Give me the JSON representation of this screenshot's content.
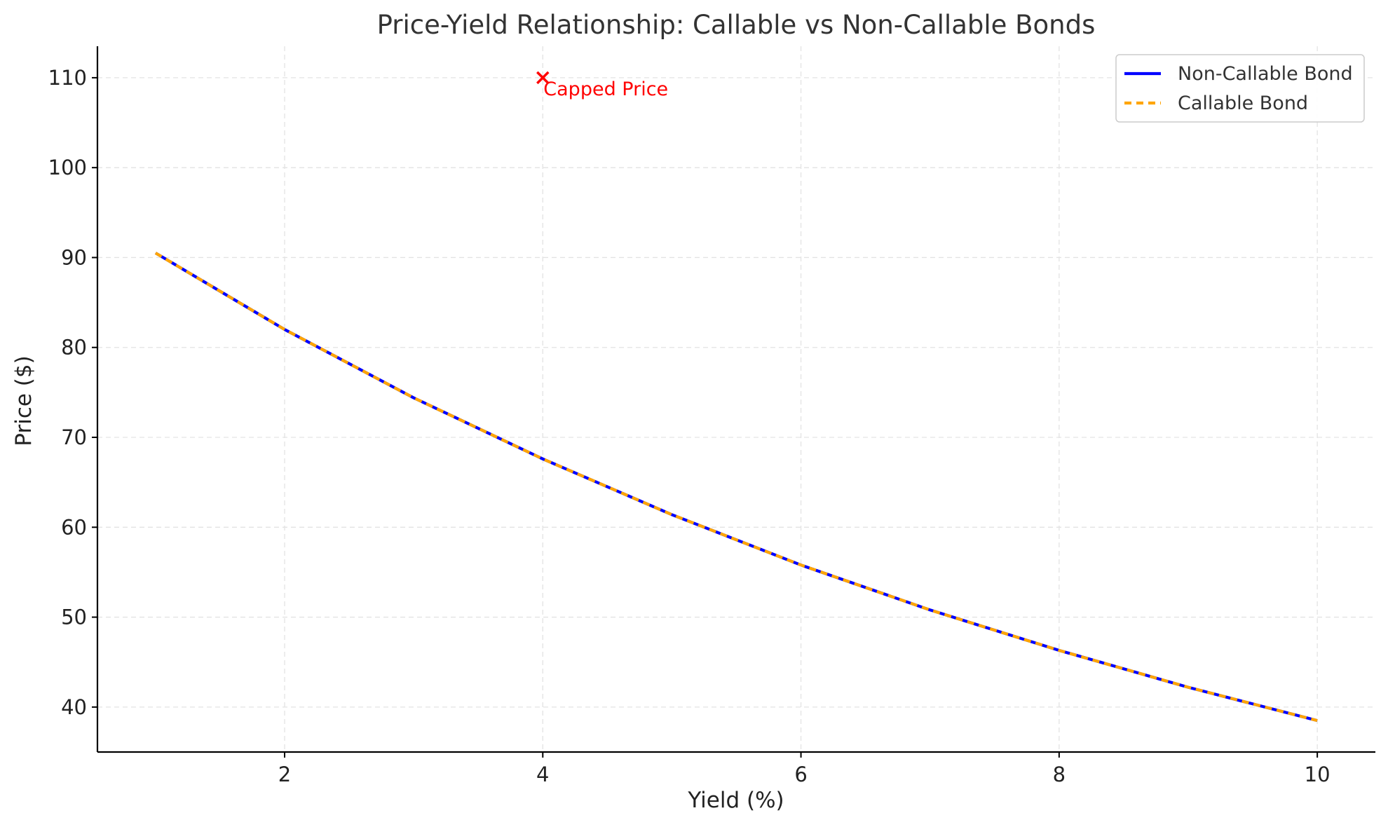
{
  "chart_data": {
    "type": "line",
    "title": "Price-Yield Relationship: Callable vs Non-Callable Bonds",
    "xlabel": "Yield (%)",
    "ylabel": "Price ($)",
    "xlim": [
      0.55,
      10.45
    ],
    "ylim": [
      35,
      113.5
    ],
    "xticks": [
      2,
      4,
      6,
      8,
      10
    ],
    "yticks": [
      40,
      50,
      60,
      70,
      80,
      90,
      100,
      110
    ],
    "grid": true,
    "legend_position": "top-right",
    "x": [
      1,
      2,
      3,
      4,
      5,
      6,
      7,
      8,
      9,
      10
    ],
    "series": [
      {
        "name": "Non-Callable Bond",
        "color": "#0000ff",
        "style": "solid",
        "values": [
          90.5,
          82.0,
          74.4,
          67.6,
          61.4,
          55.8,
          50.8,
          46.3,
          42.2,
          38.5
        ]
      },
      {
        "name": "Callable Bond",
        "color": "#ffa500",
        "style": "dashed",
        "values": [
          90.5,
          82.0,
          74.4,
          67.6,
          61.4,
          55.8,
          50.8,
          46.3,
          42.2,
          38.5
        ]
      }
    ],
    "annotations": [
      {
        "text": "Capped Price",
        "x": 4,
        "y": 110,
        "marker": "x",
        "color": "#ff0000"
      }
    ]
  }
}
